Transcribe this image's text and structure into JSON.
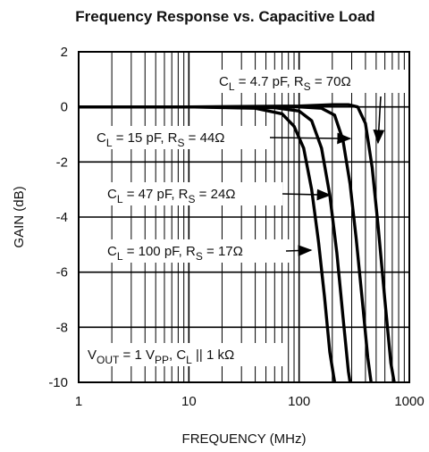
{
  "chart_data": {
    "type": "line",
    "title": "Frequency Response vs. Capacitive Load",
    "xlabel": "FREQUENCY (MHz)",
    "ylabel": "GAIN (dB)",
    "x_scale": "log",
    "xlim": [
      1,
      1000
    ],
    "ylim": [
      -10,
      2
    ],
    "x_ticks": [
      1,
      10,
      100,
      1000
    ],
    "x_tick_labels": [
      "1",
      "10",
      "100",
      "1000"
    ],
    "y_ticks": [
      2,
      0,
      -2,
      -4,
      -6,
      -8,
      -10
    ],
    "y_tick_labels": [
      "2",
      "0",
      "-2",
      "-4",
      "-6",
      "-8",
      "-10"
    ],
    "grid": true,
    "line_color": "#000000",
    "series": [
      {
        "name": "C_L = 4.7 pF, R_S = 70Ω",
        "x": [
          1,
          10,
          100,
          200,
          280,
          340,
          400,
          460,
          520,
          600,
          680,
          730
        ],
        "y": [
          0,
          0,
          0.03,
          0.08,
          0.08,
          0,
          -0.6,
          -2.2,
          -4.3,
          -7,
          -9.3,
          -10
        ]
      },
      {
        "name": "C_L = 15 pF, R_S = 44Ω",
        "x": [
          1,
          10,
          100,
          160,
          210,
          250,
          290,
          330,
          380,
          420,
          450
        ],
        "y": [
          0,
          0,
          0,
          -0.05,
          -0.3,
          -1.2,
          -2.8,
          -4.8,
          -7.3,
          -9.1,
          -10
        ]
      },
      {
        "name": "C_L = 47 pF, R_S = 24Ω",
        "x": [
          1,
          10,
          60,
          100,
          130,
          160,
          190,
          220,
          250,
          280,
          290
        ],
        "y": [
          0,
          0,
          -0.03,
          -0.15,
          -0.5,
          -1.5,
          -3.2,
          -5.3,
          -7.6,
          -9.6,
          -10
        ]
      },
      {
        "name": "C_L = 100 pF, R_S = 17Ω",
        "x": [
          1,
          10,
          40,
          70,
          90,
          110,
          130,
          150,
          170,
          190,
          210
        ],
        "y": [
          0,
          0,
          -0.05,
          -0.25,
          -0.7,
          -1.5,
          -3.0,
          -4.9,
          -6.9,
          -8.9,
          -10
        ]
      }
    ],
    "annotations": [
      {
        "id": "ann-4p7",
        "main": "C",
        "sub1": "L",
        "mid": " = 4.7 pF, R",
        "sub2": "S",
        "tail": " = 70Ω",
        "arrow_to": [
          520,
          -1.3
        ]
      },
      {
        "id": "ann-15",
        "main": "C",
        "sub1": "L",
        "mid": " = 15 pF, R",
        "sub2": "S",
        "tail": " = 44Ω",
        "arrow_to": [
          290,
          -1.15
        ]
      },
      {
        "id": "ann-47",
        "main": "C",
        "sub1": "L",
        "mid": " = 47 pF, R",
        "sub2": "S",
        "tail": " = 24Ω",
        "arrow_to": [
          190,
          -3.2
        ]
      },
      {
        "id": "ann-100",
        "main": "C",
        "sub1": "L",
        "mid": " = 100 pF, R",
        "sub2": "S",
        "tail": " = 17Ω",
        "arrow_to": [
          128,
          -5.2
        ]
      },
      {
        "id": "ann-vout",
        "main": "V",
        "sub1": "OUT",
        "mid": " = 1 V",
        "sub2": "PP",
        "tail": ", C",
        "sub3": "L",
        "tail2": " || 1 kΩ"
      }
    ]
  }
}
